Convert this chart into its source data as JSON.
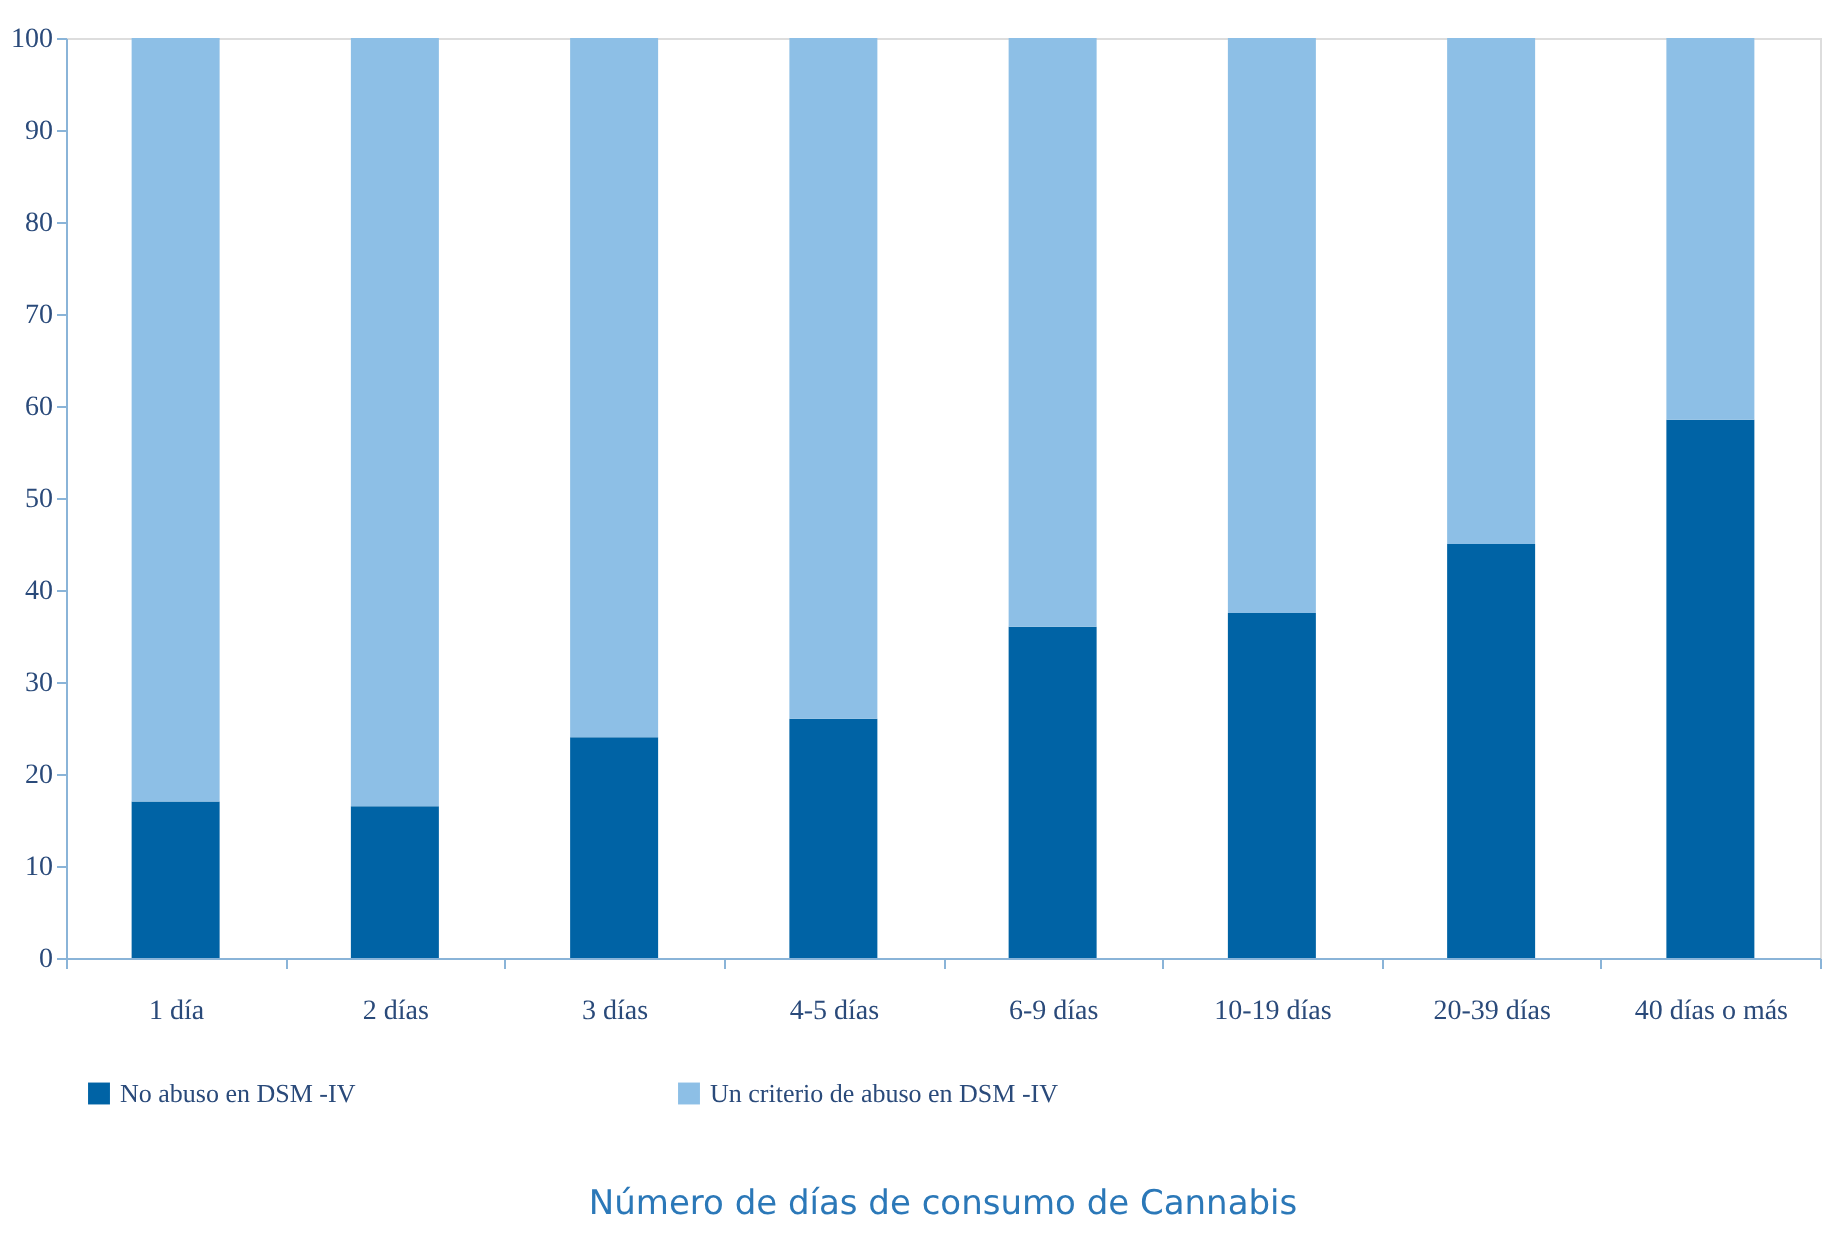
{
  "chart_data": {
    "type": "bar",
    "stacked": true,
    "xlabel": "Número de días de consumo de Cannabis",
    "categories": [
      "1 día",
      "2 días",
      "3 días",
      "4-5 días",
      "6-9 días",
      "10-19 días",
      "20-39 días",
      "40 días o más"
    ],
    "series": [
      {
        "name": "No abuso en DSM -IV",
        "color": "#0063a5",
        "values": [
          17.0,
          16.5,
          24.0,
          26.0,
          36.0,
          37.5,
          45.0,
          58.5
        ]
      },
      {
        "name": "Un criterio de abuso en DSM -IV",
        "color": "#8dbfe6",
        "values": [
          83.0,
          83.5,
          76.0,
          74.0,
          64.0,
          62.5,
          55.0,
          41.5
        ]
      }
    ],
    "ylim": [
      0,
      100
    ],
    "yticks": [
      0,
      10,
      20,
      30,
      40,
      50,
      60,
      70,
      80,
      90,
      100
    ],
    "grid": false,
    "legend": "bottom left"
  }
}
